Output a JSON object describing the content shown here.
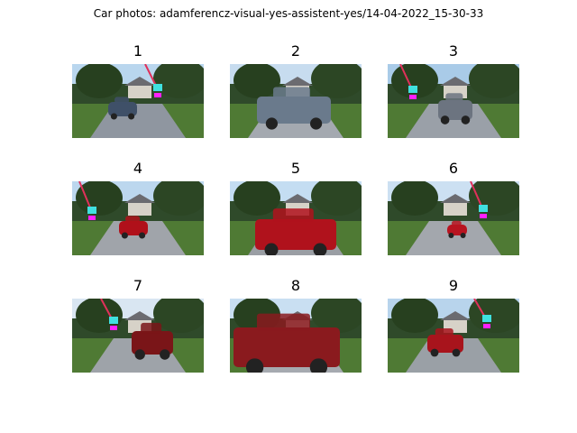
{
  "figure": {
    "title": "Car photos: adamferencz-visual-yes-assistent-yes/14-04-2022_15-30-33"
  },
  "panels": [
    {
      "label": "1",
      "car_color": "#3f5068",
      "markers": true
    },
    {
      "label": "2",
      "car_color": "#6a7a8c",
      "markers": false
    },
    {
      "label": "3",
      "car_color": "#6c7480",
      "markers": true
    },
    {
      "label": "4",
      "car_color": "#b0101a",
      "markers": true
    },
    {
      "label": "5",
      "car_color": "#b0121c",
      "markers": false
    },
    {
      "label": "6",
      "car_color": "#b81420",
      "markers": true
    },
    {
      "label": "7",
      "car_color": "#7a1518",
      "markers": true
    },
    {
      "label": "8",
      "car_color": "#8a1a1e",
      "markers": false
    },
    {
      "label": "9",
      "car_color": "#a8141c",
      "markers": true
    }
  ]
}
